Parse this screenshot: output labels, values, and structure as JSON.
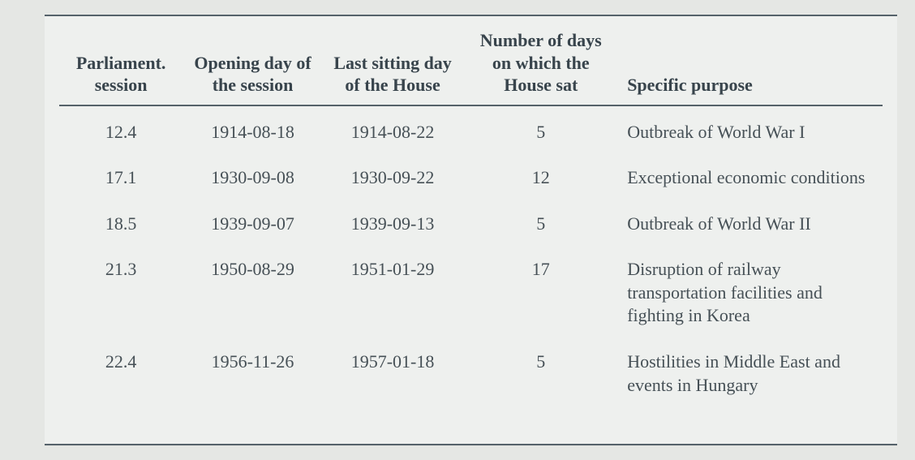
{
  "table": {
    "columns": {
      "session": "Parliament. session",
      "opening": "Opening day of the session",
      "last": "Last sitting day of the House",
      "days": "Number of days on which the House sat",
      "purpose": "Specific purpose"
    },
    "rows": [
      {
        "session": "12.4",
        "opening": "1914-08-18",
        "last": "1914-08-22",
        "days": "5",
        "purpose": "Outbreak of World War I"
      },
      {
        "session": "17.1",
        "opening": "1930-09-08",
        "last": "1930-09-22",
        "days": "12",
        "purpose": "Exceptional economic conditions"
      },
      {
        "session": "18.5",
        "opening": "1939-09-07",
        "last": "1939-09-13",
        "days": "5",
        "purpose": "Outbreak of World War II"
      },
      {
        "session": "21.3",
        "opening": "1950-08-29",
        "last": "1951-01-29",
        "days": "17",
        "purpose": "Disruption of railway transportation facilities and fighting in Korea"
      },
      {
        "session": "22.4",
        "opening": "1956-11-26",
        "last": "1957-01-18",
        "days": "5",
        "purpose": "Hostilities in Middle East and events in Hungary"
      }
    ],
    "style": {
      "page_bg": "#e5e7e4",
      "panel_bg": "#eef0ee",
      "border_color": "#55626a",
      "header_text_color": "#38444c",
      "body_text_color": "#465056",
      "font_family": "Georgia, 'Times New Roman', serif",
      "header_font_size_pt": 16,
      "body_font_size_pt": 16,
      "col_widths_pct": [
        15,
        17,
        17,
        19,
        32
      ],
      "alignments": {
        "session": "center",
        "opening": "center",
        "last": "center",
        "days": "center",
        "purpose": "left"
      }
    }
  }
}
